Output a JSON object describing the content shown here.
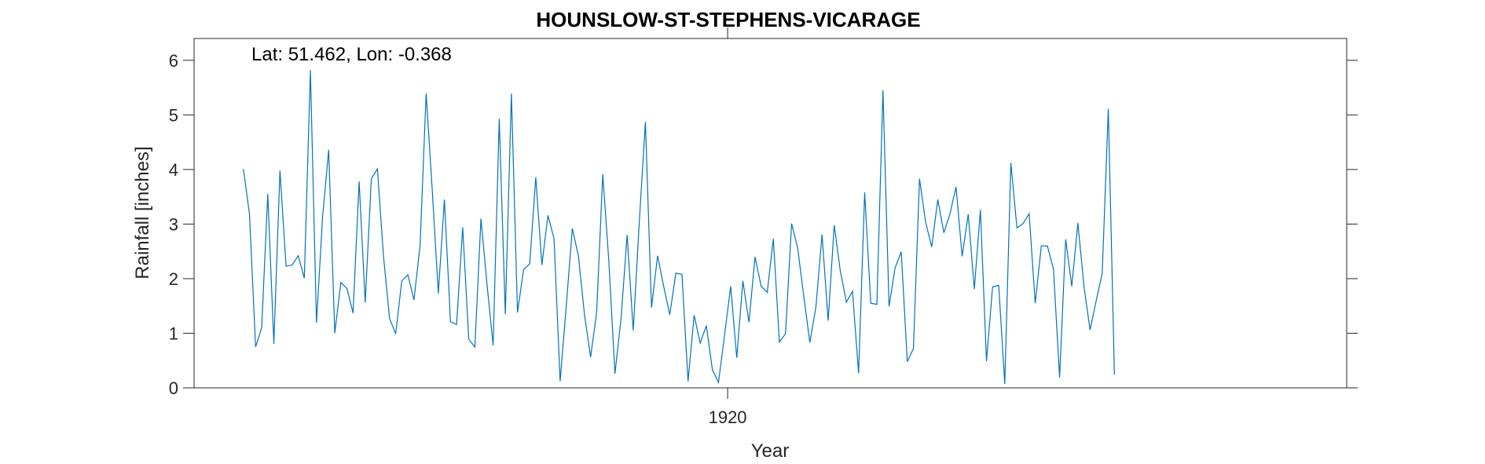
{
  "chart_data": {
    "type": "line",
    "title": "HOUNSLOW-ST-STEPHENS-VICARAGE",
    "xlabel": "Year",
    "ylabel": "Rainfall [inches]",
    "annotation": "Lat: 51.462, Lon: -0.368",
    "x_tick_labels": [
      "1920"
    ],
    "x_ticks": [
      1920
    ],
    "y_ticks": [
      0,
      1,
      2,
      3,
      4,
      5,
      6
    ],
    "xlim": [
      1912.7,
      1928.47
    ],
    "ylim": [
      0,
      6.4
    ],
    "grid": false,
    "line_color": "#0072BD",
    "series": [
      {
        "x_start": 1913.375,
        "x_step": 0.0833333,
        "values": [
          4.01,
          3.18,
          0.75,
          1.1,
          3.55,
          0.81,
          3.98,
          2.23,
          2.25,
          2.42,
          2.01,
          5.82,
          1.19,
          3.13,
          4.36,
          1.0,
          1.93,
          1.82,
          1.37,
          3.78,
          1.56,
          3.83,
          4.01,
          2.41,
          1.27,
          0.99,
          1.96,
          2.07,
          1.61,
          2.6,
          5.39,
          3.63,
          1.73,
          3.45,
          1.21,
          1.16,
          2.94,
          0.89,
          0.75,
          3.1,
          1.89,
          0.78,
          4.93,
          1.35,
          5.39,
          1.38,
          2.17,
          2.27,
          3.86,
          2.25,
          3.16,
          2.73,
          0.12,
          1.49,
          2.92,
          2.42,
          1.34,
          0.56,
          1.39,
          3.91,
          2.31,
          0.26,
          1.27,
          2.8,
          1.05,
          3.05,
          4.87,
          1.47,
          2.42,
          1.86,
          1.34,
          2.1,
          2.08,
          0.12,
          1.33,
          0.82,
          1.14,
          0.33,
          0.1,
          0.97,
          1.86,
          0.55,
          1.96,
          1.2,
          2.4,
          1.86,
          1.75,
          2.73,
          0.84,
          0.99,
          3.01,
          2.56,
          1.68,
          0.83,
          1.49,
          2.81,
          1.23,
          2.98,
          2.14,
          1.57,
          1.77,
          0.27,
          3.58,
          1.55,
          1.53,
          5.45,
          1.49,
          2.2,
          2.49,
          0.48,
          0.72,
          3.83,
          3.04,
          2.58,
          3.45,
          2.84,
          3.19,
          3.68,
          2.41,
          3.18,
          1.81,
          3.26,
          0.49,
          1.85,
          1.88,
          0.07,
          4.12,
          2.93,
          3.01,
          3.19,
          1.55,
          2.6,
          2.6,
          2.17,
          0.19,
          2.72,
          1.86,
          3.02,
          1.86,
          1.06,
          1.59,
          2.1,
          5.11,
          0.24
        ]
      }
    ]
  }
}
